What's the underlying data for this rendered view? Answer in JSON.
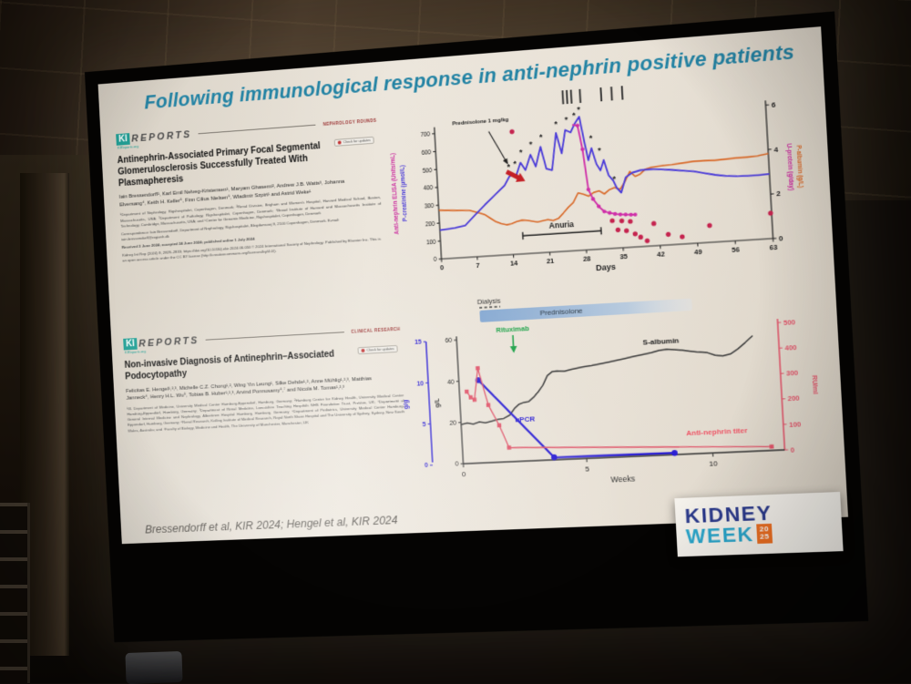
{
  "slide": {
    "title": "Following immunological response in anti-nephrin positive patients",
    "citation": "Bressendorff et al, KIR 2024; Hengel et al, KIR 2024"
  },
  "logo": {
    "kidney": "KIDNEY",
    "week": "WEEK",
    "year_top": "20",
    "year_bottom": "25"
  },
  "paper1": {
    "logo_ki": "KI",
    "logo_reports": "REPORTS",
    "logo_site": "KIReports.org",
    "section": "NEPHROLOGY ROUNDS",
    "badge": "Check for updates",
    "title": "Antinephrin-Associated Primary Focal Segmental Glomerulosclerosis Successfully Treated With Plasmapheresis",
    "authors": "Iain Bressendorff¹, Karl Emil Nelveg-Kristensen¹, Maryam Ghasemi², Andrew J.B. Watts³, Johanna Elversang⁴, Keith H. Keller⁵, Finn Cilius Nielsen⁶, Wladimir Szpirt¹ and Astrid Weke¹",
    "affiliations": "¹Department of Nephrology, Rigshospitalet, Copenhagen, Denmark; ²Renal Division, Brigham and Women's Hospital, Harvard Medical School, Boston, Massachusetts, USA; ³Department of Pathology, Rigshospitalet, Copenhagen, Denmark; ⁴Broad Institute of Harvard and Massachusetts Institute of Technology, Cambridge, Massachusetts, USA; and ⁵Center for Genomic Medicine, Rigshospitalet, Copenhagen, Denmark",
    "correspondence": "Correspondence: Iain Bressendorff, Department of Nephrology, Rigshospitalet, Blegdamsvej 9, 2100 Copenhagen, Denmark. E-mail: iain.bressendorff@regionh.dk",
    "received": "Received 3 June 2024; accepted 24 June 2024; published online 1 July 2024",
    "doi_line": "Kidney Int Rep (2024) 9, 2829–2833; https://doi.org/10.1016/j.ekir.2024.06.034 © 2024 International Society of Nephrology. Published by Elsevier Inc. This is an open access article under the CC BY license (http://creativecommons.org/licenses/by/4.0/)."
  },
  "paper2": {
    "logo_ki": "KI",
    "logo_reports": "REPORTS",
    "logo_site": "KIReports.org",
    "section": "CLINICAL RESEARCH",
    "badge": "Check for updates",
    "title": "Non-invasive Diagnosis of Antinephrin–Associated Podocytopathy",
    "authors": "Felicitas E. Hengel¹,²,³, Michelle C.Z. Chong¹,², Wing Yin Leung¹, Silke Dehde¹,², Anne Mühlig¹,²,³, Matthias Janneck⁴, Henry H.L. Wu⁵, Tobias B. Huber¹,²,³, Arvind Ponnusamy⁶,⁷ and Nicola M. Tomas¹,²,³",
    "affiliations": "¹III. Department of Medicine, University Medical Center Hamburg-Eppendorf, Hamburg, Germany; ²Hamburg Center for Kidney Health, University Medical Center Hamburg-Eppendorf, Hamburg, Germany; ³Department of Renal Medicine, Lancashire Teaching Hospitals NHS Foundation Trust, Preston, UK; ⁴Department of General Internal Medicine and Nephrology, Albertinen Hospital Hamburg, Hamburg, Germany; ⁵Department of Pediatrics, University Medical Center Hamburg-Eppendorf, Hamburg, Germany; ⁶Renal Research, Kolling Institute of Medical Research, Royal North Shore Hospital and The University of Sydney, Sydney, New South Wales, Australia; and ⁷Faculty of Biology, Medicine and Health, The University of Manchester, Manchester, UK"
  },
  "chart_data": [
    {
      "type": "line",
      "xlabel": "Days",
      "x_ticks": [
        0,
        7,
        14,
        21,
        28,
        35,
        42,
        49,
        56,
        63
      ],
      "left_axis": {
        "labels": [
          "Anti-nephrin ELISA (Units/mL)",
          "P-creatinine (µmol/L)"
        ],
        "colors": [
          "#cc2fa0",
          "#4a3bd8"
        ],
        "ticks": [
          0,
          100,
          200,
          300,
          400,
          500,
          600,
          700
        ],
        "range": [
          0,
          760
        ]
      },
      "right_axis": {
        "labels": [
          "U-protein (g/day)",
          "P-albumin (g/L)"
        ],
        "colors": [
          "#cc2fa0",
          "#d96a2a"
        ],
        "ticks": [
          0,
          2,
          4,
          6
        ],
        "range": [
          0,
          6.3
        ]
      },
      "series": [
        {
          "name": "P-albumin",
          "axis": "right",
          "color": "#d96a2a",
          "width": 1.6,
          "points": [
            [
              0,
              2.25
            ],
            [
              3,
              2.2
            ],
            [
              6,
              2.15
            ],
            [
              8,
              2.0
            ],
            [
              9,
              1.9
            ],
            [
              10,
              1.72
            ],
            [
              11,
              1.55
            ],
            [
              12,
              1.45
            ],
            [
              13,
              1.38
            ],
            [
              14,
              1.42
            ],
            [
              15,
              1.5
            ],
            [
              16,
              1.55
            ],
            [
              17,
              1.52
            ],
            [
              18,
              1.47
            ],
            [
              19,
              1.42
            ],
            [
              20,
              1.46
            ],
            [
              21,
              1.5
            ],
            [
              22,
              1.44
            ],
            [
              23,
              1.52
            ],
            [
              24,
              1.75
            ],
            [
              25,
              2.0
            ],
            [
              26,
              2.2
            ],
            [
              27,
              2.62
            ],
            [
              28,
              2.55
            ],
            [
              29,
              2.45
            ],
            [
              30,
              2.6
            ],
            [
              31,
              2.66
            ],
            [
              32,
              2.5
            ],
            [
              33,
              2.68
            ],
            [
              34,
              2.76
            ],
            [
              35,
              2.66
            ],
            [
              36,
              3.0
            ],
            [
              37,
              3.44
            ],
            [
              38,
              3.2
            ],
            [
              39,
              3.3
            ],
            [
              40,
              3.5
            ],
            [
              41,
              3.56
            ],
            [
              43,
              3.6
            ],
            [
              45,
              3.62
            ],
            [
              47,
              3.66
            ],
            [
              49,
              3.7
            ],
            [
              51,
              3.7
            ],
            [
              53,
              3.68
            ],
            [
              55,
              3.7
            ],
            [
              57,
              3.72
            ],
            [
              59,
              3.72
            ],
            [
              61,
              3.75
            ],
            [
              63,
              3.82
            ]
          ]
        },
        {
          "name": "P-creatinine",
          "axis": "left",
          "color": "#4a3bd8",
          "width": 1.8,
          "points": [
            [
              0,
              160
            ],
            [
              3,
              168
            ],
            [
              5,
              178
            ],
            [
              7,
              232
            ],
            [
              9,
              285
            ],
            [
              11,
              335
            ],
            [
              13,
              385
            ],
            [
              14,
              432
            ],
            [
              14.7,
              448
            ],
            [
              15.3,
              430
            ],
            [
              16.3,
              505
            ],
            [
              17.2,
              462
            ],
            [
              18.3,
              545
            ],
            [
              19.2,
              478
            ],
            [
              20.3,
              585
            ],
            [
              21.2,
              462
            ],
            [
              22.3,
              452
            ],
            [
              23.4,
              655
            ],
            [
              24.3,
              540
            ],
            [
              25.2,
              668
            ],
            [
              26.2,
              652
            ],
            [
              27.1,
              700
            ],
            [
              28,
              735
            ],
            [
              28.7,
              598
            ],
            [
              29.3,
              492
            ],
            [
              30,
              558
            ],
            [
              30.8,
              468
            ],
            [
              31.5,
              432
            ],
            [
              32.2,
              488
            ],
            [
              33,
              402
            ],
            [
              33.8,
              372
            ],
            [
              34.4,
              330
            ],
            [
              35.2,
              302
            ],
            [
              36.2,
              385
            ],
            [
              37.5,
              408
            ],
            [
              39,
              418
            ],
            [
              41,
              420
            ],
            [
              43,
              415
            ],
            [
              45,
              408
            ],
            [
              47,
              400
            ],
            [
              49,
              392
            ],
            [
              51,
              378
            ],
            [
              53,
              365
            ],
            [
              55,
              355
            ],
            [
              57,
              350
            ],
            [
              59,
              348
            ],
            [
              61,
              348
            ],
            [
              63,
              350
            ]
          ]
        },
        {
          "name": "U-protein",
          "axis": "right",
          "color": "#cf2fa8",
          "width": 1.8,
          "marker": "circle",
          "points": [
            [
              26.6,
              5.75
            ],
            [
              27.6,
              5.7
            ],
            [
              28.3,
              4.6
            ],
            [
              29,
              2.75
            ],
            [
              29.8,
              2.3
            ],
            [
              30.8,
              1.95
            ],
            [
              31.8,
              1.7
            ],
            [
              32.8,
              1.62
            ],
            [
              33.8,
              1.56
            ],
            [
              34.8,
              1.52
            ],
            [
              35.8,
              1.5
            ],
            [
              36.8,
              1.48
            ],
            [
              37.6,
              1.47
            ]
          ]
        },
        {
          "name": "Anti-nephrin ELISA",
          "axis": "left",
          "color": "#c5244f",
          "style": "dots",
          "points": [
            [
              15,
              680
            ],
            [
              33.2,
              152
            ],
            [
              34.2,
              100
            ],
            [
              35,
              148
            ],
            [
              35.8,
              92
            ],
            [
              36.6,
              142
            ],
            [
              37.4,
              72
            ],
            [
              38.4,
              52
            ],
            [
              39.6,
              30
            ],
            [
              41,
              122
            ],
            [
              43.6,
              58
            ],
            [
              46.2,
              40
            ],
            [
              51.4,
              92
            ],
            [
              62.8,
              138
            ]
          ]
        }
      ],
      "annotations": {
        "prednisolone_label": "Prednisolone 1 mg/kg",
        "prednisolone_arrow": {
          "from_day": 10.5,
          "from_val": 690,
          "to_day": 13.8,
          "to_val": 505
        },
        "red_arrow": {
          "day": 15.2,
          "val": 432,
          "angle": 30
        },
        "anuria": {
          "label": "Anuria",
          "from": 16,
          "to": 31,
          "val": 100
        },
        "asterisks": [
          [
            14,
            470
          ],
          [
            15.2,
            485
          ],
          [
            16.5,
            545
          ],
          [
            18.5,
            585
          ],
          [
            20.5,
            622
          ],
          [
            23.5,
            690
          ],
          [
            25.5,
            708
          ],
          [
            27,
            728
          ],
          [
            28,
            762
          ],
          [
            30,
            600
          ],
          [
            31.5,
            528
          ],
          [
            34,
            365
          ]
        ],
        "session_tick_days": [
          25.1,
          25.9,
          26.7,
          28.4,
          32.4,
          34.4,
          36.4
        ]
      }
    },
    {
      "type": "line",
      "xlabel": "Weeks",
      "x_ticks": [
        0,
        5,
        10
      ],
      "x_range": [
        0,
        12.8
      ],
      "axes": {
        "gg": {
          "label": "g/g",
          "color": "#2b1fd4",
          "ticks": [
            0,
            5,
            10,
            15
          ],
          "range": [
            0,
            15
          ]
        },
        "gl": {
          "label": "g/L",
          "color": "#333333",
          "ticks": [
            0,
            20,
            40,
            60
          ],
          "range": [
            0,
            60
          ]
        },
        "ru": {
          "label": "RU/ml",
          "color": "#e0556a",
          "ticks": [
            0,
            100,
            200,
            300,
            400,
            500
          ],
          "range": [
            0,
            500
          ]
        }
      },
      "series": [
        {
          "name": "S-albumin",
          "axis": "gl",
          "color": "#3c3c3c",
          "width": 1.5,
          "points": [
            [
              0,
              19
            ],
            [
              0.25,
              19.6
            ],
            [
              0.5,
              19
            ],
            [
              0.75,
              19.8
            ],
            [
              1,
              19.3
            ],
            [
              1.25,
              20
            ],
            [
              1.5,
              20.6
            ],
            [
              1.75,
              21
            ],
            [
              2,
              22.5
            ],
            [
              2.2,
              25.5
            ],
            [
              2.4,
              27.5
            ],
            [
              2.6,
              28.3
            ],
            [
              2.8,
              28.6
            ],
            [
              3,
              30.5
            ],
            [
              3.2,
              33
            ],
            [
              3.4,
              36
            ],
            [
              3.6,
              40.5
            ],
            [
              3.8,
              42.3
            ],
            [
              4,
              42.6
            ],
            [
              4.3,
              42.2
            ],
            [
              4.6,
              43
            ],
            [
              5,
              43.8
            ],
            [
              5.4,
              44.3
            ],
            [
              5.8,
              45
            ],
            [
              6.2,
              45.8
            ],
            [
              6.6,
              46.6
            ],
            [
              7,
              47.4
            ],
            [
              7.4,
              48.2
            ],
            [
              7.8,
              49
            ],
            [
              8.1,
              49.8
            ],
            [
              8.4,
              50.2
            ],
            [
              8.7,
              49.8
            ],
            [
              9,
              49.4
            ],
            [
              9.3,
              48.8
            ],
            [
              9.6,
              48.2
            ],
            [
              10,
              47.6
            ],
            [
              10.3,
              46.2
            ],
            [
              10.6,
              45.6
            ],
            [
              10.9,
              46.4
            ],
            [
              11.2,
              48.6
            ],
            [
              11.5,
              51.5
            ],
            [
              11.8,
              54.5
            ]
          ]
        },
        {
          "name": "uPCR",
          "axis": "gg",
          "color": "#2b1fd4",
          "width": 2.2,
          "marker": "circle",
          "points": [
            [
              0.8,
              10
            ],
            [
              3.7,
              0.3
            ],
            [
              8.5,
              0.2
            ]
          ]
        },
        {
          "name": "Anti-nephrin titer",
          "axis": "ru",
          "color": "#e0556a",
          "width": 1.3,
          "marker": "square",
          "points": [
            [
              0.3,
              290
            ],
            [
              0.45,
              266
            ],
            [
              0.6,
              256
            ],
            [
              0.8,
              382
            ],
            [
              1.15,
              232
            ],
            [
              1.55,
              148
            ],
            [
              1.9,
              57
            ],
            [
              12.3,
              15
            ]
          ]
        }
      ],
      "series_labels": [
        {
          "text": "S-albumin",
          "week": 8.2,
          "axis": "gl",
          "val": 53,
          "color": "#222222"
        },
        {
          "text": "uPCR",
          "week": 2.6,
          "axis": "gl",
          "val": 19,
          "color": "#2b1fd4"
        },
        {
          "text": "Anti-nephrin titer",
          "week": 10.2,
          "axis": "ru",
          "val": 72,
          "color": "#ee5566"
        }
      ],
      "annotations": {
        "dialysis": {
          "label": "Dialysis",
          "from": 1.0,
          "to": 1.85
        },
        "prednisolone": {
          "label": "Prednisolone",
          "from": 1.0,
          "to": 9.5
        },
        "rituximab": {
          "label": "Rituximab",
          "week": 2.3
        }
      }
    }
  ]
}
